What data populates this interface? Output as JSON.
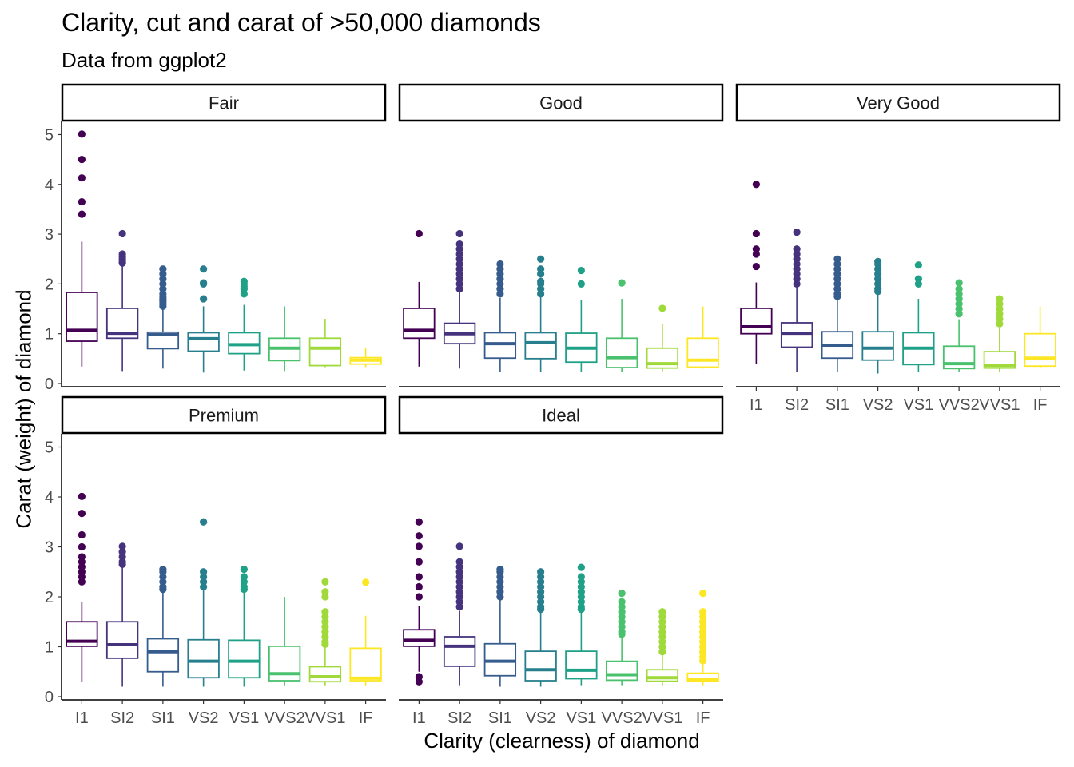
{
  "chart_data": {
    "type": "boxplot",
    "title": "Clarity, cut and carat of >50,000 diamonds",
    "subtitle": "Data from ggplot2",
    "xlabel": "Clarity (clearness) of diamond",
    "ylabel": "Carat (weight) of diamond",
    "ylim": [
      0,
      5.2
    ],
    "yticks": [
      0,
      1,
      2,
      3,
      4,
      5
    ],
    "categories": [
      "I1",
      "SI2",
      "SI1",
      "VS2",
      "VS1",
      "VVS2",
      "VVS1",
      "IF"
    ],
    "colors": [
      "#440154",
      "#46337E",
      "#365C8D",
      "#277F8E",
      "#1FA187",
      "#4AC16D",
      "#9FDA3A",
      "#FDE725"
    ],
    "grid": false,
    "legend": "none",
    "panels": [
      {
        "facet": "Fair",
        "boxes": [
          {
            "q1": 0.85,
            "median": 1.07,
            "q3": 1.83,
            "low": 0.34,
            "high": 2.85,
            "outliers": [
              3.4,
              3.65,
              4.13,
              4.5,
              5.01
            ]
          },
          {
            "q1": 0.91,
            "median": 1.01,
            "q3": 1.51,
            "low": 0.25,
            "high": 2.4,
            "outliers": [
              2.42,
              2.45,
              2.5,
              2.55,
              2.6,
              3.01
            ]
          },
          {
            "q1": 0.7,
            "median": 0.98,
            "q3": 1.03,
            "low": 0.3,
            "high": 1.54,
            "outliers": [
              1.55,
              1.6,
              1.65,
              1.7,
              1.75,
              1.8,
              1.9,
              2.0,
              2.1,
              2.2,
              2.3
            ]
          },
          {
            "q1": 0.65,
            "median": 0.9,
            "q3": 1.02,
            "low": 0.22,
            "high": 1.55,
            "outliers": [
              1.7,
              2.0,
              2.02,
              2.3
            ]
          },
          {
            "q1": 0.6,
            "median": 0.78,
            "q3": 1.02,
            "low": 0.26,
            "high": 1.58,
            "outliers": [
              1.8,
              1.9,
              1.95,
              2.0,
              2.05
            ]
          },
          {
            "q1": 0.46,
            "median": 0.71,
            "q3": 0.91,
            "low": 0.25,
            "high": 1.55,
            "outliers": []
          },
          {
            "q1": 0.36,
            "median": 0.71,
            "q3": 0.91,
            "low": 0.33,
            "high": 1.3,
            "outliers": []
          },
          {
            "q1": 0.39,
            "median": 0.47,
            "q3": 0.52,
            "low": 0.33,
            "high": 0.71,
            "outliers": []
          }
        ]
      },
      {
        "facet": "Good",
        "boxes": [
          {
            "q1": 0.91,
            "median": 1.07,
            "q3": 1.51,
            "low": 0.34,
            "high": 2.04,
            "outliers": [
              3.01
            ]
          },
          {
            "q1": 0.8,
            "median": 1.0,
            "q3": 1.21,
            "low": 0.3,
            "high": 1.84,
            "outliers": [
              1.9,
              2.0,
              2.1,
              2.2,
              2.3,
              2.4,
              2.5,
              2.6,
              2.7,
              2.8,
              3.01
            ]
          },
          {
            "q1": 0.51,
            "median": 0.8,
            "q3": 1.02,
            "low": 0.23,
            "high": 1.72,
            "outliers": [
              1.8,
              1.9,
              2.0,
              2.1,
              2.2,
              2.3,
              2.4
            ]
          },
          {
            "q1": 0.5,
            "median": 0.82,
            "q3": 1.02,
            "low": 0.23,
            "high": 1.73,
            "outliers": [
              1.8,
              1.9,
              2.0,
              2.05,
              2.2,
              2.3,
              2.5
            ]
          },
          {
            "q1": 0.43,
            "median": 0.71,
            "q3": 1.01,
            "low": 0.23,
            "high": 1.67,
            "outliers": [
              2.0,
              2.27
            ]
          },
          {
            "q1": 0.32,
            "median": 0.52,
            "q3": 0.91,
            "low": 0.23,
            "high": 1.7,
            "outliers": [
              2.02
            ]
          },
          {
            "q1": 0.31,
            "median": 0.4,
            "q3": 0.71,
            "low": 0.23,
            "high": 1.2,
            "outliers": [
              1.51
            ]
          },
          {
            "q1": 0.33,
            "median": 0.47,
            "q3": 0.91,
            "low": 0.3,
            "high": 1.55,
            "outliers": []
          }
        ]
      },
      {
        "facet": "Very Good",
        "boxes": [
          {
            "q1": 1.0,
            "median": 1.14,
            "q3": 1.51,
            "low": 0.4,
            "high": 2.03,
            "outliers": [
              2.35,
              2.6,
              2.7,
              3.01,
              4.0
            ]
          },
          {
            "q1": 0.73,
            "median": 1.01,
            "q3": 1.22,
            "low": 0.23,
            "high": 1.95,
            "outliers": [
              2.0,
              2.1,
              2.2,
              2.3,
              2.4,
              2.5,
              2.6,
              2.7,
              3.04
            ]
          },
          {
            "q1": 0.51,
            "median": 0.77,
            "q3": 1.04,
            "low": 0.23,
            "high": 1.71,
            "outliers": [
              1.75,
              1.8,
              1.9,
              2.0,
              2.1,
              2.2,
              2.3,
              2.4,
              2.5
            ]
          },
          {
            "q1": 0.47,
            "median": 0.71,
            "q3": 1.04,
            "low": 0.2,
            "high": 1.8,
            "outliers": [
              1.85,
              1.9,
              2.0,
              2.1,
              2.2,
              2.3,
              2.4,
              2.45
            ]
          },
          {
            "q1": 0.38,
            "median": 0.71,
            "q3": 1.02,
            "low": 0.23,
            "high": 1.7,
            "outliers": [
              2.0,
              2.1,
              2.38
            ]
          },
          {
            "q1": 0.3,
            "median": 0.4,
            "q3": 0.75,
            "low": 0.24,
            "high": 1.29,
            "outliers": [
              1.4,
              1.5,
              1.6,
              1.7,
              1.8,
              1.9,
              2.02
            ]
          },
          {
            "q1": 0.31,
            "median": 0.36,
            "q3": 0.64,
            "low": 0.23,
            "high": 1.12,
            "outliers": [
              1.2,
              1.3,
              1.4,
              1.5,
              1.6,
              1.7
            ]
          },
          {
            "q1": 0.35,
            "median": 0.51,
            "q3": 1.0,
            "low": 0.3,
            "high": 1.55,
            "outliers": []
          }
        ]
      },
      {
        "facet": "Premium",
        "boxes": [
          {
            "q1": 1.01,
            "median": 1.11,
            "q3": 1.5,
            "low": 0.3,
            "high": 1.9,
            "outliers": [
              2.3,
              2.4,
              2.5,
              2.6,
              2.7,
              2.8,
              3.0,
              3.24,
              3.67,
              4.01
            ]
          },
          {
            "q1": 0.77,
            "median": 1.04,
            "q3": 1.5,
            "low": 0.2,
            "high": 2.6,
            "outliers": [
              2.65,
              2.7,
              2.8,
              2.9,
              3.01
            ]
          },
          {
            "q1": 0.5,
            "median": 0.9,
            "q3": 1.16,
            "low": 0.2,
            "high": 2.1,
            "outliers": [
              2.15,
              2.2,
              2.3,
              2.4,
              2.5,
              2.55
            ]
          },
          {
            "q1": 0.38,
            "median": 0.71,
            "q3": 1.14,
            "low": 0.2,
            "high": 2.15,
            "outliers": [
              2.2,
              2.3,
              2.4,
              2.5,
              3.5
            ]
          },
          {
            "q1": 0.38,
            "median": 0.71,
            "q3": 1.13,
            "low": 0.2,
            "high": 2.12,
            "outliers": [
              2.15,
              2.2,
              2.3,
              2.4,
              2.55
            ]
          },
          {
            "q1": 0.32,
            "median": 0.46,
            "q3": 1.01,
            "low": 0.23,
            "high": 2.0,
            "outliers": []
          },
          {
            "q1": 0.3,
            "median": 0.4,
            "q3": 0.6,
            "low": 0.23,
            "high": 1.0,
            "outliers": [
              1.05,
              1.1,
              1.2,
              1.3,
              1.4,
              1.5,
              1.6,
              1.7,
              2.0,
              2.1,
              2.3
            ]
          },
          {
            "q1": 0.32,
            "median": 0.37,
            "q3": 0.97,
            "low": 0.23,
            "high": 1.62,
            "outliers": [
              2.29
            ]
          }
        ]
      },
      {
        "facet": "Ideal",
        "boxes": [
          {
            "q1": 1.01,
            "median": 1.13,
            "q3": 1.34,
            "low": 0.5,
            "high": 1.82,
            "outliers": [
              0.3,
              0.4,
              2.0,
              2.2,
              2.4,
              2.7,
              3.01,
              3.22,
              3.5
            ]
          },
          {
            "q1": 0.61,
            "median": 1.01,
            "q3": 1.2,
            "low": 0.23,
            "high": 1.72,
            "outliers": [
              1.8,
              1.9,
              2.0,
              2.1,
              2.2,
              2.3,
              2.4,
              2.5,
              2.6,
              2.7,
              3.01
            ]
          },
          {
            "q1": 0.42,
            "median": 0.71,
            "q3": 1.06,
            "low": 0.2,
            "high": 1.96,
            "outliers": [
              2.0,
              2.1,
              2.2,
              2.3,
              2.4,
              2.5,
              2.55
            ]
          },
          {
            "q1": 0.32,
            "median": 0.54,
            "q3": 0.91,
            "low": 0.2,
            "high": 1.73,
            "outliers": [
              1.75,
              1.8,
              1.9,
              2.0,
              2.1,
              2.2,
              2.3,
              2.4,
              2.5
            ]
          },
          {
            "q1": 0.36,
            "median": 0.53,
            "q3": 0.91,
            "low": 0.23,
            "high": 1.7,
            "outliers": [
              1.75,
              1.8,
              1.9,
              2.0,
              2.1,
              2.2,
              2.3,
              2.4,
              2.59
            ]
          },
          {
            "q1": 0.33,
            "median": 0.44,
            "q3": 0.71,
            "low": 0.23,
            "high": 1.2,
            "outliers": [
              1.25,
              1.3,
              1.4,
              1.5,
              1.6,
              1.7,
              1.8,
              1.9,
              2.07
            ]
          },
          {
            "q1": 0.31,
            "median": 0.38,
            "q3": 0.54,
            "low": 0.23,
            "high": 0.88,
            "outliers": [
              0.9,
              1.0,
              1.1,
              1.2,
              1.3,
              1.4,
              1.5,
              1.6,
              1.7
            ]
          },
          {
            "q1": 0.31,
            "median": 0.35,
            "q3": 0.47,
            "low": 0.23,
            "high": 0.7,
            "outliers": [
              0.72,
              0.8,
              0.9,
              1.0,
              1.1,
              1.2,
              1.3,
              1.4,
              1.5,
              1.6,
              1.7,
              2.07
            ]
          }
        ]
      }
    ]
  }
}
